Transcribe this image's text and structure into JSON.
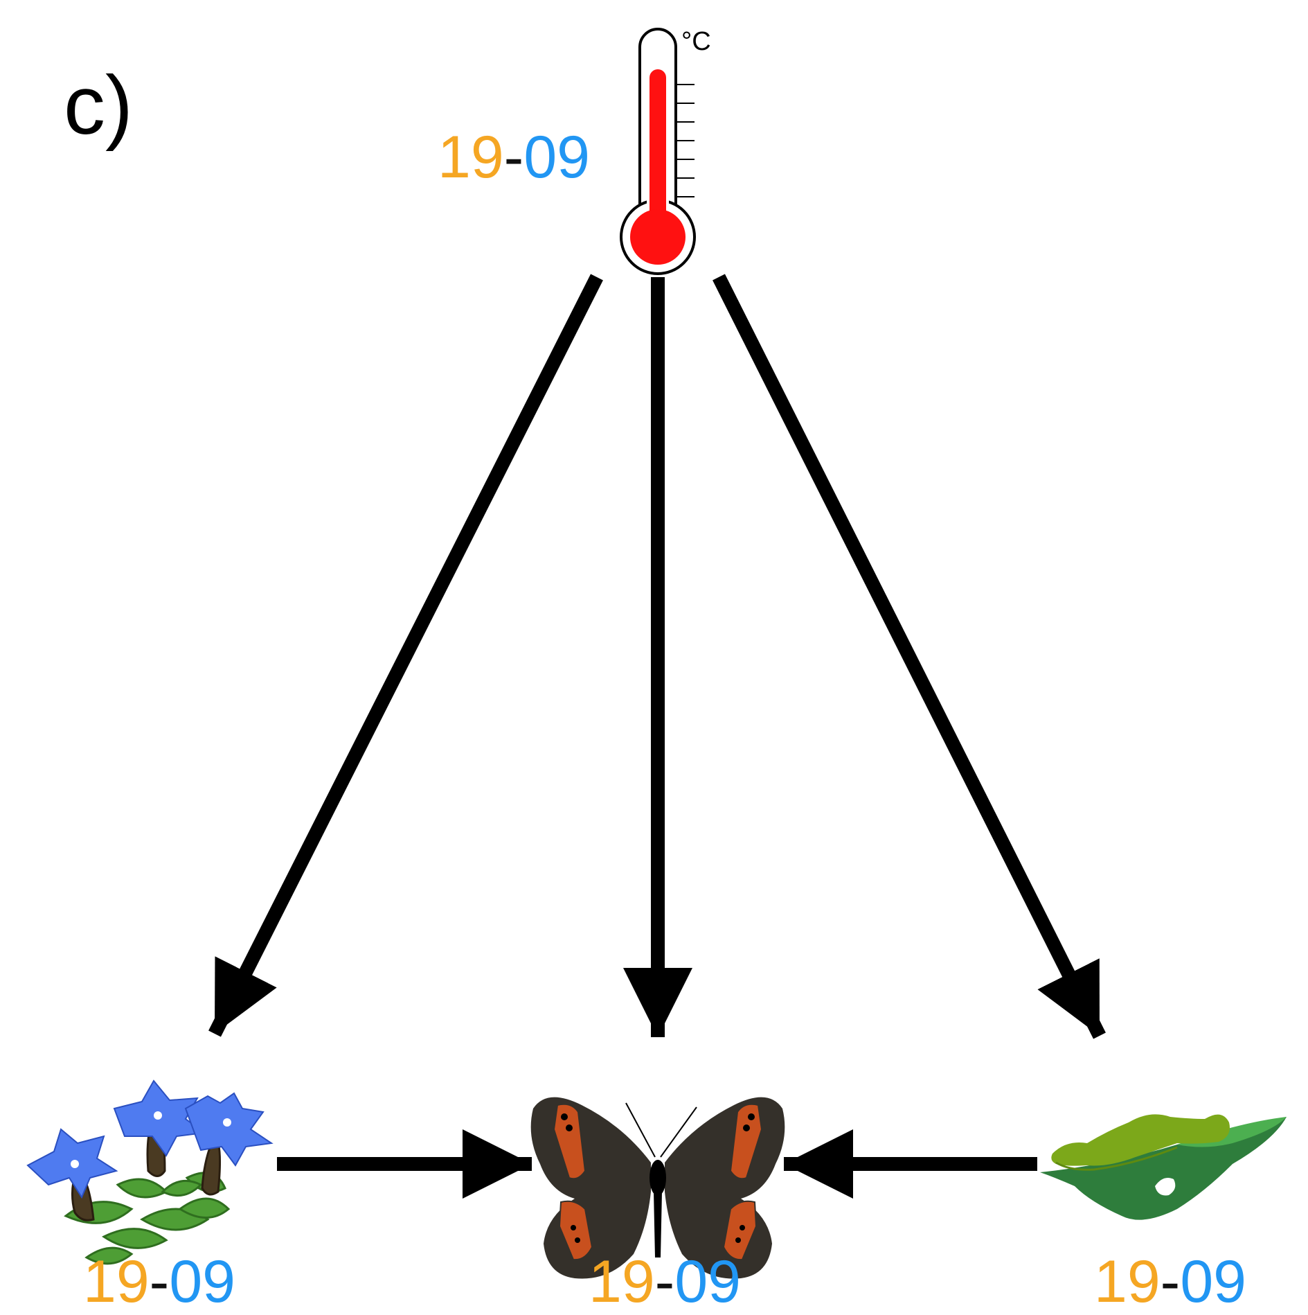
{
  "panel_label": "c)",
  "unit_label": "°C",
  "colors": {
    "start_year": "#F5A623",
    "end_year": "#2196F3",
    "dash": "#111111",
    "arrow": "#000000",
    "mercury": "#FF1111",
    "gentian_petal": "#4F7BF0",
    "leaf": "#4E9E35",
    "wing": "#34302A",
    "wing_band": "#C8501E",
    "caterpillar": "#7CA81A",
    "grass_blade": "#2E7D3C"
  },
  "nodes": [
    {
      "id": "temperature",
      "icon": "thermometer-icon",
      "start": "19",
      "sep": "-",
      "end": "09"
    },
    {
      "id": "host_plant",
      "icon": "gentian-flower-icon",
      "start": "19",
      "sep": "-",
      "end": "09"
    },
    {
      "id": "butterfly",
      "icon": "butterfly-icon",
      "start": "19",
      "sep": "-",
      "end": "09"
    },
    {
      "id": "larva",
      "icon": "caterpillar-on-leaf-icon",
      "start": "19",
      "sep": "-",
      "end": "09"
    }
  ],
  "edges": [
    {
      "from": "temperature",
      "to": "host_plant"
    },
    {
      "from": "temperature",
      "to": "butterfly"
    },
    {
      "from": "temperature",
      "to": "larva"
    },
    {
      "from": "host_plant",
      "to": "butterfly"
    },
    {
      "from": "larva",
      "to": "butterfly"
    }
  ]
}
